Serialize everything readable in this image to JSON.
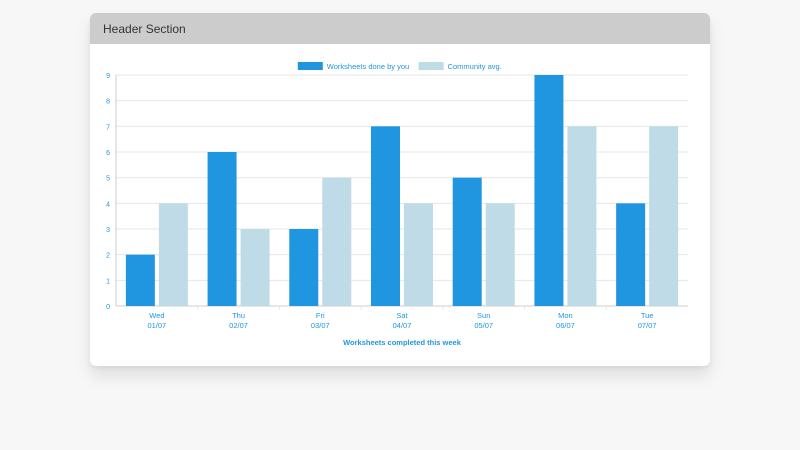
{
  "header": {
    "title": "Header Section"
  },
  "colors": {
    "primary": "#2196e0",
    "secondary": "#bfdbe7",
    "text": "#2196e0",
    "grid": "#e6e6e6",
    "axis": "#cccccc"
  },
  "chart_data": {
    "type": "bar",
    "title": "",
    "xlabel": "Worksheets completed this week",
    "ylabel": "",
    "ylim": [
      0,
      9
    ],
    "yticks": [
      0,
      1,
      2,
      3,
      4,
      5,
      6,
      7,
      8,
      9
    ],
    "grid": true,
    "legend_position": "top",
    "categories": [
      "Wed",
      "Thu",
      "Fri",
      "Sat",
      "Sun",
      "Mon",
      "Tue"
    ],
    "dates": [
      "01/07",
      "02/07",
      "03/07",
      "04/07",
      "05/07",
      "06/07",
      "07/07"
    ],
    "series": [
      {
        "name": "Worksheets done by you",
        "values": [
          2,
          6,
          3,
          7,
          5,
          9,
          4
        ],
        "color": "#2196e0"
      },
      {
        "name": "Community avg.",
        "values": [
          4,
          3,
          5,
          4,
          4,
          7,
          7
        ],
        "color": "#bfdbe7"
      }
    ]
  }
}
